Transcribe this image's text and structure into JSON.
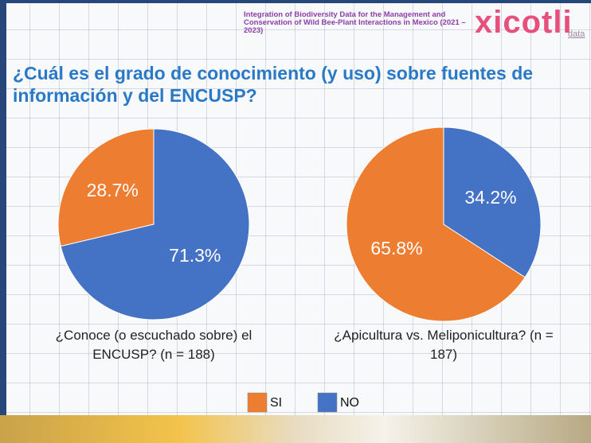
{
  "header": {
    "project": "Integration of Biodiversity Data for the Management and Conservation of Wild Bee-Plant Interactions in Mexico (2021 – 2023)",
    "logo": "xicotli",
    "logo_suffix": "data"
  },
  "title": "¿Cuál es el grado de conocimiento (y uso) sobre fuentes de información y del ENCUSP?",
  "chart_data": [
    {
      "type": "pie",
      "title": "¿Conoce (o escuchado sobre) el ENCUSP? (n = 188)",
      "categories": [
        "SI",
        "NO"
      ],
      "values": [
        28.7,
        71.3
      ],
      "value_labels": [
        "28.7%",
        "71.3%"
      ],
      "colors": [
        "#ed7d31",
        "#4472c4"
      ]
    },
    {
      "type": "pie",
      "title": "¿Apicultura vs. Meliponicultura? (n = 187)",
      "categories": [
        "SI",
        "NO"
      ],
      "values": [
        65.8,
        34.2
      ],
      "value_labels": [
        "65.8%",
        "34.2%"
      ],
      "colors": [
        "#ed7d31",
        "#4472c4"
      ]
    }
  ]
}
